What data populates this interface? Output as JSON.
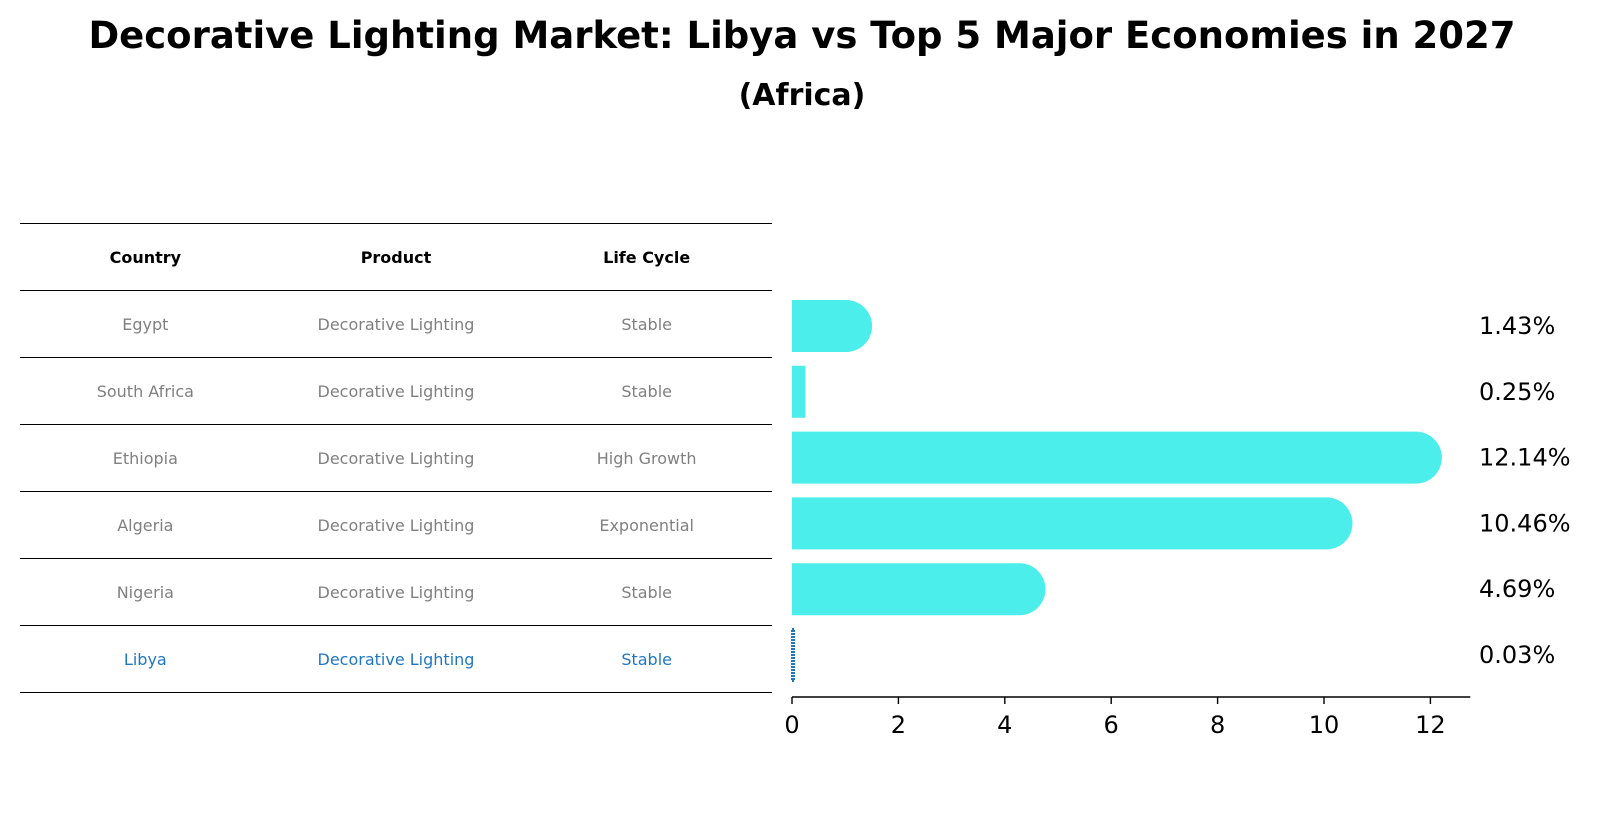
{
  "title": "Decorative Lighting Market: Libya vs Top 5 Major Economies in 2027",
  "subtitle": "(Africa)",
  "table": {
    "headers": [
      "Country",
      "Product",
      "Life Cycle"
    ],
    "rows": [
      {
        "country": "Egypt",
        "product": "Decorative Lighting",
        "life_cycle": "Stable"
      },
      {
        "country": "South Africa",
        "product": "Decorative Lighting",
        "life_cycle": "Stable"
      },
      {
        "country": "Ethiopia",
        "product": "Decorative Lighting",
        "life_cycle": "High Growth"
      },
      {
        "country": "Algeria",
        "product": "Decorative Lighting",
        "life_cycle": "Exponential"
      },
      {
        "country": "Nigeria",
        "product": "Decorative Lighting",
        "life_cycle": "Stable"
      },
      {
        "country": "Libya",
        "product": "Decorative Lighting",
        "life_cycle": "Stable"
      }
    ]
  },
  "chart_data": {
    "type": "bar",
    "orientation": "horizontal",
    "categories": [
      "Egypt",
      "South Africa",
      "Ethiopia",
      "Algeria",
      "Nigeria",
      "Libya"
    ],
    "values": [
      1.43,
      0.25,
      12.14,
      10.46,
      4.69,
      0.03
    ],
    "value_labels": [
      "1.43%",
      "0.25%",
      "12.14%",
      "10.46%",
      "4.69%",
      "0.03%"
    ],
    "xlim": [
      0,
      12.75
    ],
    "xticks": [
      0,
      2,
      4,
      6,
      8,
      10,
      12
    ],
    "xlabel": "",
    "ylabel": "",
    "grid": false,
    "colors": {
      "bar": "#4beeea",
      "highlight": "#1f77c4",
      "highlight_text": "#1f77c4",
      "muted_text": "#808080"
    },
    "highlight_index": 5
  }
}
